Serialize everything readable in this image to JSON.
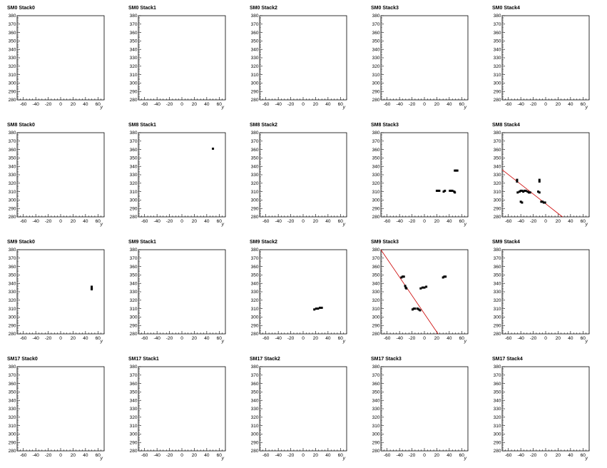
{
  "layout": {
    "rows": 4,
    "cols": 5
  },
  "chart_data": [
    {
      "type": "scatter",
      "title": "SM0 Stack0",
      "xlabel": "y",
      "xlim": [
        -70,
        70
      ],
      "ylim": [
        280,
        380
      ],
      "points": [],
      "lines": []
    },
    {
      "type": "scatter",
      "title": "SM0 Stack1",
      "xlabel": "y",
      "xlim": [
        -70,
        70
      ],
      "ylim": [
        280,
        380
      ],
      "points": [],
      "lines": []
    },
    {
      "type": "scatter",
      "title": "SM0 Stack2",
      "xlabel": "y",
      "xlim": [
        -70,
        70
      ],
      "ylim": [
        280,
        380
      ],
      "points": [],
      "lines": []
    },
    {
      "type": "scatter",
      "title": "SM0 Stack3",
      "xlabel": "y",
      "xlim": [
        -70,
        70
      ],
      "ylim": [
        280,
        380
      ],
      "points": [],
      "lines": []
    },
    {
      "type": "scatter",
      "title": "SM0 Stack4",
      "xlabel": "y",
      "xlim": [
        -70,
        70
      ],
      "ylim": [
        280,
        380
      ],
      "points": [],
      "lines": []
    },
    {
      "type": "scatter",
      "title": "SM8 Stack0",
      "xlabel": "y",
      "xlim": [
        -70,
        70
      ],
      "ylim": [
        280,
        380
      ],
      "points": [],
      "lines": []
    },
    {
      "type": "scatter",
      "title": "SM8 Stack1",
      "xlabel": "y",
      "xlim": [
        -70,
        70
      ],
      "ylim": [
        280,
        380
      ],
      "points": [
        [
          50,
          361
        ]
      ],
      "lines": []
    },
    {
      "type": "scatter",
      "title": "SM8 Stack2",
      "xlabel": "y",
      "xlim": [
        -70,
        70
      ],
      "ylim": [
        280,
        380
      ],
      "points": [],
      "lines": []
    },
    {
      "type": "scatter",
      "title": "SM8 Stack3",
      "xlabel": "y",
      "xlim": [
        -70,
        70
      ],
      "ylim": [
        280,
        380
      ],
      "points": [
        [
          20,
          311
        ],
        [
          22,
          311
        ],
        [
          24,
          311
        ],
        [
          31,
          310
        ],
        [
          33,
          311
        ],
        [
          41,
          311
        ],
        [
          43,
          311
        ],
        [
          45,
          311
        ],
        [
          48,
          310
        ],
        [
          49,
          309
        ],
        [
          49,
          335
        ],
        [
          51,
          335
        ],
        [
          53,
          335
        ]
      ],
      "lines": []
    },
    {
      "type": "scatter",
      "title": "SM8 Stack4",
      "xlabel": "y",
      "xlim": [
        -70,
        70
      ],
      "ylim": [
        280,
        380
      ],
      "points": [
        [
          -46,
          324
        ],
        [
          -46,
          322
        ],
        [
          -45,
          309
        ],
        [
          -42,
          310
        ],
        [
          -40,
          311
        ],
        [
          -38,
          311
        ],
        [
          -36,
          310
        ],
        [
          -34,
          311
        ],
        [
          -32,
          311
        ],
        [
          -29,
          310
        ],
        [
          -27,
          309
        ],
        [
          -25,
          309
        ],
        [
          -40,
          298
        ],
        [
          -38,
          297
        ],
        [
          -10,
          324
        ],
        [
          -10,
          322
        ],
        [
          -12,
          310
        ],
        [
          -10,
          309
        ],
        [
          -7,
          298
        ],
        [
          -5,
          298
        ],
        [
          -3,
          297
        ],
        [
          -1,
          297
        ]
      ],
      "lines": [
        {
          "color": "#cc0000",
          "x": [
            -70,
            27
          ],
          "y": [
            336,
            280
          ]
        }
      ]
    },
    {
      "type": "scatter",
      "title": "SM9 Stack0",
      "xlabel": "y",
      "xlim": [
        -70,
        70
      ],
      "ylim": [
        280,
        380
      ],
      "points": [
        [
          50,
          336
        ],
        [
          50,
          334
        ],
        [
          50,
          333
        ]
      ],
      "lines": []
    },
    {
      "type": "scatter",
      "title": "SM9 Stack1",
      "xlabel": "y",
      "xlim": [
        -70,
        70
      ],
      "ylim": [
        280,
        380
      ],
      "points": [],
      "lines": []
    },
    {
      "type": "scatter",
      "title": "SM9 Stack2",
      "xlabel": "y",
      "xlim": [
        -70,
        70
      ],
      "ylim": [
        280,
        380
      ],
      "points": [
        [
          18,
          309
        ],
        [
          21,
          310
        ],
        [
          24,
          310
        ],
        [
          27,
          311
        ],
        [
          30,
          311
        ]
      ],
      "lines": []
    },
    {
      "type": "scatter",
      "title": "SM9 Stack3",
      "xlabel": "y",
      "xlim": [
        -70,
        70
      ],
      "ylim": [
        280,
        380
      ],
      "points": [
        [
          -37,
          347
        ],
        [
          -35,
          348
        ],
        [
          -33,
          348
        ],
        [
          -31,
          337
        ],
        [
          -30,
          335
        ],
        [
          -29,
          334
        ],
        [
          -19,
          309
        ],
        [
          -17,
          310
        ],
        [
          -15,
          310
        ],
        [
          -11,
          310
        ],
        [
          -9,
          309
        ],
        [
          -7,
          308
        ],
        [
          -6,
          334
        ],
        [
          -3,
          335
        ],
        [
          0,
          335
        ],
        [
          3,
          336
        ],
        [
          30,
          347
        ],
        [
          32,
          348
        ],
        [
          34,
          348
        ]
      ],
      "lines": [
        {
          "color": "#cc0000",
          "x": [
            -70,
            22
          ],
          "y": [
            380,
            280
          ]
        }
      ]
    },
    {
      "type": "scatter",
      "title": "SM9 Stack4",
      "xlabel": "y",
      "xlim": [
        -70,
        70
      ],
      "ylim": [
        280,
        380
      ],
      "points": [],
      "lines": []
    },
    {
      "type": "scatter",
      "title": "SM17 Stack0",
      "xlabel": "y",
      "xlim": [
        -70,
        70
      ],
      "ylim": [
        280,
        380
      ],
      "points": [],
      "lines": []
    },
    {
      "type": "scatter",
      "title": "SM17 Stack1",
      "xlabel": "y",
      "xlim": [
        -70,
        70
      ],
      "ylim": [
        280,
        380
      ],
      "points": [],
      "lines": []
    },
    {
      "type": "scatter",
      "title": "SM17 Stack2",
      "xlabel": "y",
      "xlim": [
        -70,
        70
      ],
      "ylim": [
        280,
        380
      ],
      "points": [],
      "lines": []
    },
    {
      "type": "scatter",
      "title": "SM17 Stack3",
      "xlabel": "y",
      "xlim": [
        -70,
        70
      ],
      "ylim": [
        280,
        380
      ],
      "points": [],
      "lines": []
    },
    {
      "type": "scatter",
      "title": "SM17 Stack4",
      "xlabel": "y",
      "xlim": [
        -70,
        70
      ],
      "ylim": [
        280,
        380
      ],
      "points": [],
      "lines": []
    }
  ],
  "x_ticks_major": [
    -60,
    -40,
    -20,
    0,
    20,
    40,
    60
  ],
  "y_ticks_major": [
    280,
    290,
    300,
    310,
    320,
    330,
    340,
    350,
    360,
    370,
    380
  ]
}
